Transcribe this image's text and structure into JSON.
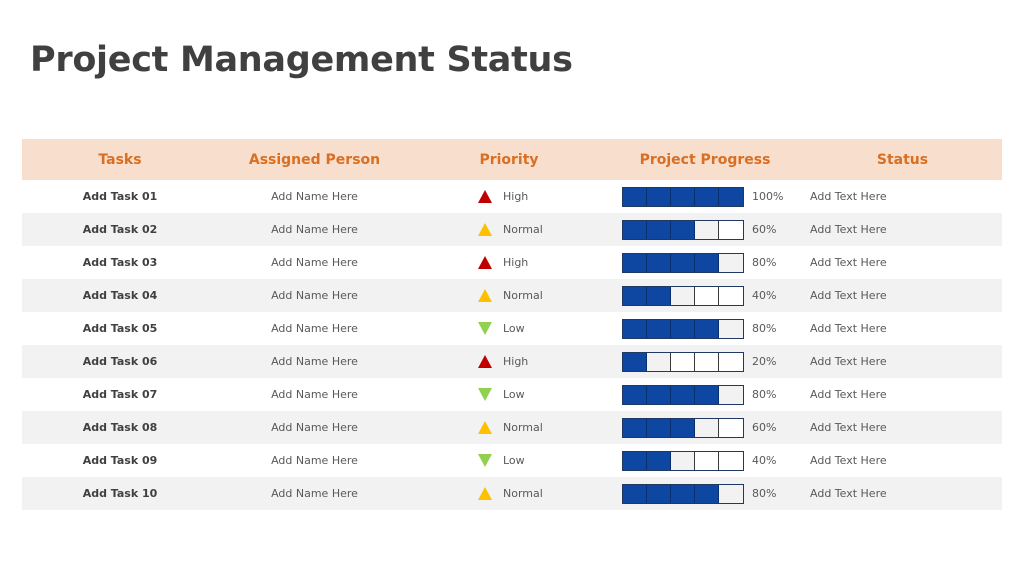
{
  "title": "Project Management Status",
  "headers": {
    "tasks": "Tasks",
    "person": "Assigned Person",
    "priority": "Priority",
    "progress": "Project Progress",
    "status": "Status"
  },
  "colors": {
    "header_bg": "#f8dfcd",
    "header_text": "#d86f23",
    "bar_fill": "#0d47a1",
    "high": "#c00000",
    "normal": "#ffc000",
    "low": "#92d050"
  },
  "rows": [
    {
      "task": "Add Task 01",
      "person": "Add Name Here",
      "priority": "High",
      "priority_icon": "red-up-triangle-icon",
      "progress": 100,
      "progress_label": "100%",
      "status": "Add Text Here"
    },
    {
      "task": "Add Task 02",
      "person": "Add Name Here",
      "priority": "Normal",
      "priority_icon": "yellow-up-triangle-icon",
      "progress": 60,
      "progress_label": "60%",
      "status": "Add Text Here"
    },
    {
      "task": "Add Task 03",
      "person": "Add Name Here",
      "priority": "High",
      "priority_icon": "red-up-triangle-icon",
      "progress": 80,
      "progress_label": "80%",
      "status": "Add Text Here"
    },
    {
      "task": "Add Task 04",
      "person": "Add Name Here",
      "priority": "Normal",
      "priority_icon": "yellow-up-triangle-icon",
      "progress": 40,
      "progress_label": "40%",
      "status": "Add Text Here"
    },
    {
      "task": "Add Task 05",
      "person": "Add Name Here",
      "priority": "Low",
      "priority_icon": "green-down-triangle-icon",
      "progress": 80,
      "progress_label": "80%",
      "status": "Add Text Here"
    },
    {
      "task": "Add Task 06",
      "person": "Add Name Here",
      "priority": "High",
      "priority_icon": "red-up-triangle-icon",
      "progress": 20,
      "progress_label": "20%",
      "status": "Add Text Here"
    },
    {
      "task": "Add Task 07",
      "person": "Add Name Here",
      "priority": "Low",
      "priority_icon": "green-down-triangle-icon",
      "progress": 80,
      "progress_label": "80%",
      "status": "Add Text Here"
    },
    {
      "task": "Add Task 08",
      "person": "Add Name Here",
      "priority": "Normal",
      "priority_icon": "yellow-up-triangle-icon",
      "progress": 60,
      "progress_label": "60%",
      "status": "Add Text Here"
    },
    {
      "task": "Add Task 09",
      "person": "Add Name Here",
      "priority": "Low",
      "priority_icon": "green-down-triangle-icon",
      "progress": 40,
      "progress_label": "40%",
      "status": "Add Text Here"
    },
    {
      "task": "Add Task 10",
      "person": "Add Name Here",
      "priority": "Normal",
      "priority_icon": "yellow-up-triangle-icon",
      "progress": 80,
      "progress_label": "80%",
      "status": "Add Text Here"
    }
  ]
}
